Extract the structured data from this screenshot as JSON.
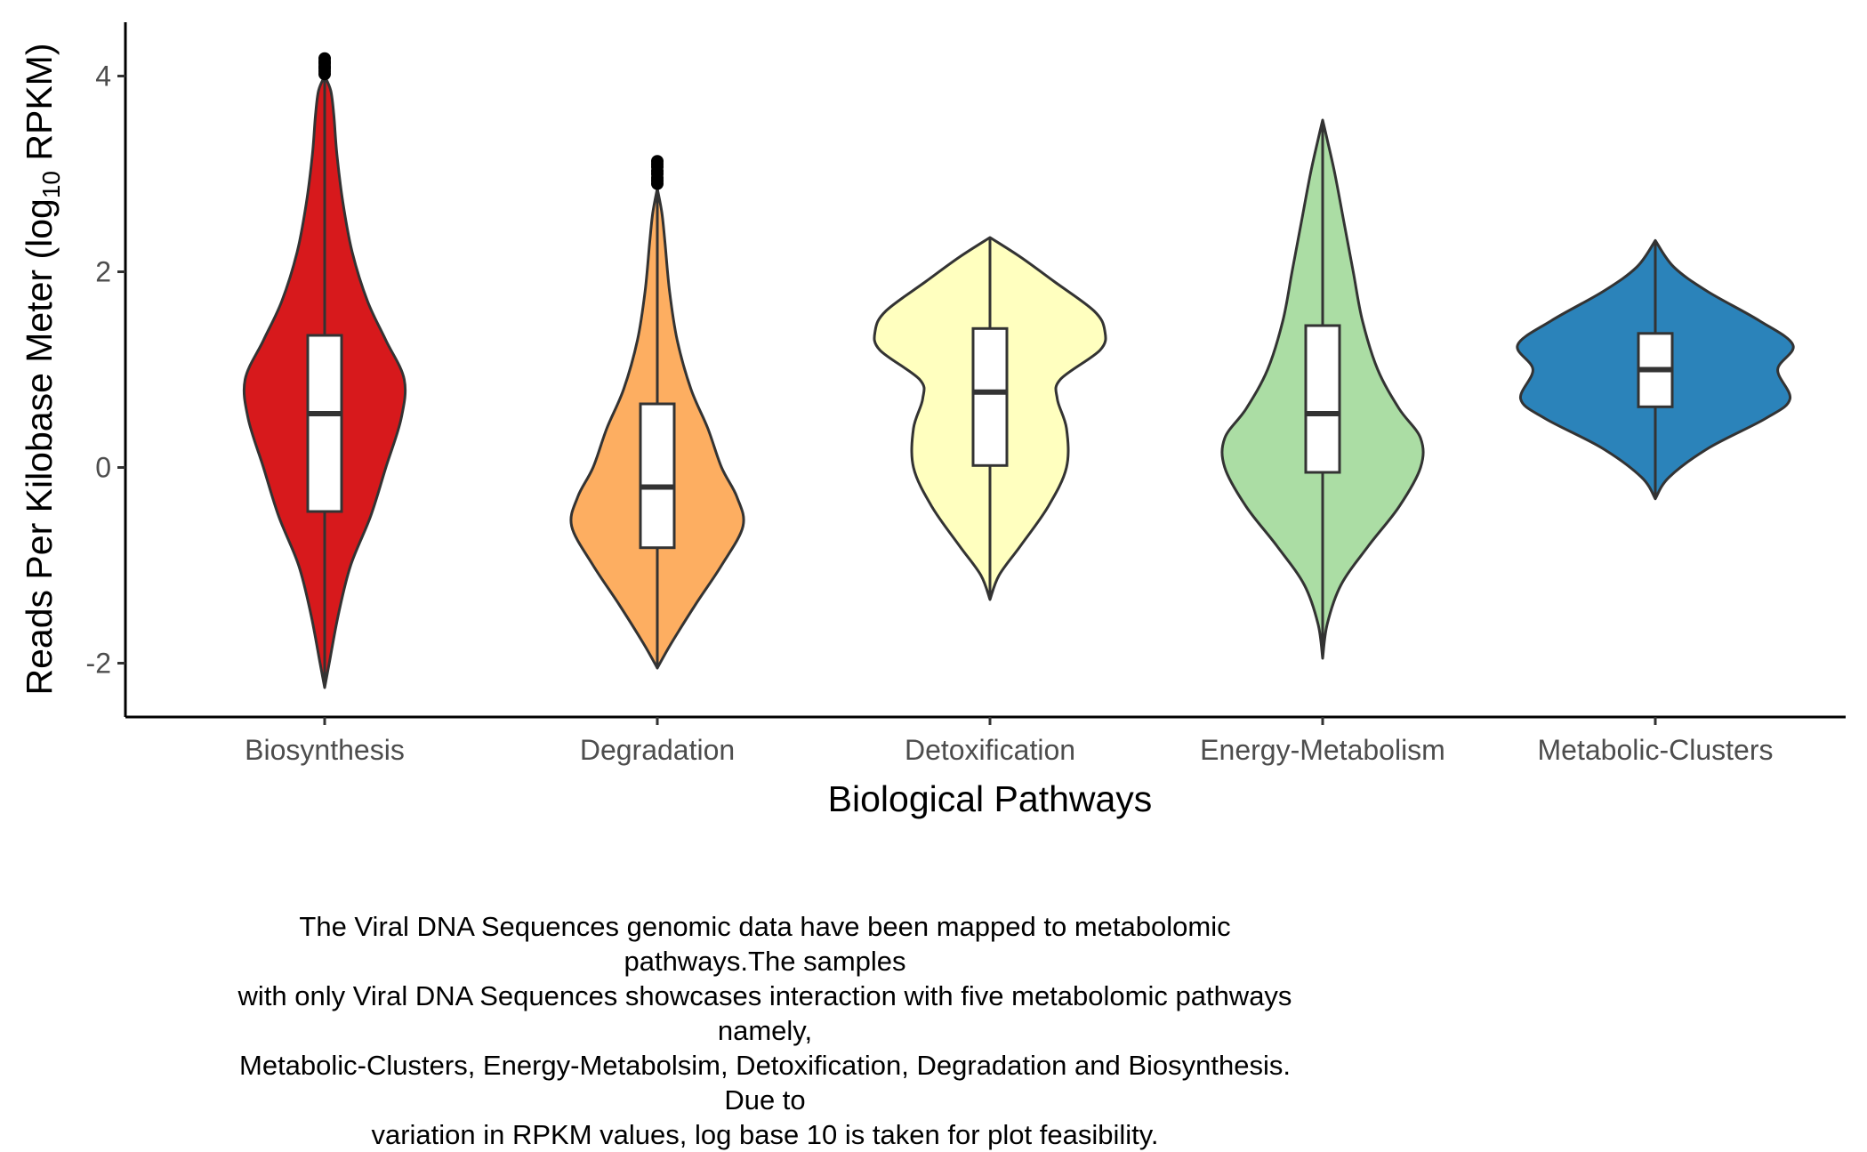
{
  "chart_data": {
    "type": "violin",
    "xlabel": "Biological Pathways",
    "ylabel": {
      "prefix": "Reads Per Kilobase Meter (log",
      "subscript": "10",
      "suffix": " RPKM)"
    },
    "ylim": [
      -2.55,
      4.55
    ],
    "yticks": [
      -2,
      0,
      2,
      4
    ],
    "ytick_labels": [
      "-2",
      "0",
      "2",
      "4"
    ],
    "grid": false,
    "legend": "none",
    "categories": [
      "Biosynthesis",
      "Degradation",
      "Detoxification",
      "Energy-Metabolism",
      "Metabolic-Clusters"
    ],
    "colors": [
      "#d7191c",
      "#fdae61",
      "#ffffbf",
      "#abdda4",
      "#2b83ba"
    ],
    "violins": [
      {
        "name": "Biosynthesis",
        "min": -2.25,
        "max": 4.0,
        "q1": -0.45,
        "median": 0.55,
        "q3": 1.35,
        "whisker_low": -2.2,
        "whisker_high": 4.0,
        "outliers": [
          4.02,
          4.05,
          4.08,
          4.1,
          4.13,
          4.15,
          4.18
        ],
        "density": [
          [
            -2.25,
            0.0
          ],
          [
            -2.0,
            0.03
          ],
          [
            -1.5,
            0.09
          ],
          [
            -1.0,
            0.17
          ],
          [
            -0.5,
            0.3
          ],
          [
            0.0,
            0.4
          ],
          [
            0.5,
            0.5
          ],
          [
            0.9,
            0.52
          ],
          [
            1.3,
            0.4
          ],
          [
            1.7,
            0.28
          ],
          [
            2.2,
            0.18
          ],
          [
            2.7,
            0.12
          ],
          [
            3.2,
            0.08
          ],
          [
            3.6,
            0.06
          ],
          [
            3.85,
            0.04
          ],
          [
            4.0,
            0.0
          ]
        ]
      },
      {
        "name": "Degradation",
        "min": -2.05,
        "max": 2.85,
        "q1": -0.82,
        "median": -0.2,
        "q3": 0.65,
        "whisker_low": -2.05,
        "whisker_high": 2.85,
        "outliers": [
          2.9,
          2.93,
          2.96,
          3.0,
          3.03,
          3.07,
          3.1,
          3.13
        ],
        "density": [
          [
            -2.05,
            0.0
          ],
          [
            -1.8,
            0.09
          ],
          [
            -1.4,
            0.25
          ],
          [
            -1.0,
            0.42
          ],
          [
            -0.6,
            0.56
          ],
          [
            -0.3,
            0.52
          ],
          [
            0.0,
            0.42
          ],
          [
            0.4,
            0.33
          ],
          [
            0.8,
            0.22
          ],
          [
            1.3,
            0.13
          ],
          [
            1.8,
            0.08
          ],
          [
            2.3,
            0.05
          ],
          [
            2.6,
            0.03
          ],
          [
            2.85,
            0.0
          ]
        ]
      },
      {
        "name": "Detoxification",
        "min": -1.35,
        "max": 2.35,
        "q1": 0.02,
        "median": 0.77,
        "q3": 1.42,
        "whisker_low": -1.35,
        "whisker_high": 2.35,
        "outliers": [],
        "density": [
          [
            -1.35,
            0.0
          ],
          [
            -1.1,
            0.06
          ],
          [
            -0.8,
            0.2
          ],
          [
            -0.4,
            0.38
          ],
          [
            0.0,
            0.5
          ],
          [
            0.4,
            0.5
          ],
          [
            0.7,
            0.44
          ],
          [
            0.9,
            0.46
          ],
          [
            1.2,
            0.72
          ],
          [
            1.4,
            0.75
          ],
          [
            1.6,
            0.68
          ],
          [
            1.9,
            0.42
          ],
          [
            2.15,
            0.2
          ],
          [
            2.35,
            0.0
          ]
        ]
      },
      {
        "name": "Energy-Metabolism",
        "min": -1.95,
        "max": 3.55,
        "q1": -0.05,
        "median": 0.55,
        "q3": 1.45,
        "whisker_low": -1.9,
        "whisker_high": 3.55,
        "outliers": [],
        "density": [
          [
            -1.95,
            0.0
          ],
          [
            -1.6,
            0.03
          ],
          [
            -1.2,
            0.12
          ],
          [
            -0.8,
            0.3
          ],
          [
            -0.4,
            0.5
          ],
          [
            0.0,
            0.64
          ],
          [
            0.3,
            0.64
          ],
          [
            0.6,
            0.5
          ],
          [
            1.0,
            0.36
          ],
          [
            1.5,
            0.26
          ],
          [
            2.0,
            0.2
          ],
          [
            2.5,
            0.14
          ],
          [
            3.0,
            0.08
          ],
          [
            3.35,
            0.03
          ],
          [
            3.55,
            0.0
          ]
        ]
      },
      {
        "name": "Metabolic-Clusters",
        "min": -0.32,
        "max": 2.32,
        "q1": 0.62,
        "median": 1.0,
        "q3": 1.37,
        "whisker_low": -0.32,
        "whisker_high": 2.32,
        "outliers": [],
        "density": [
          [
            -0.32,
            0.0
          ],
          [
            -0.1,
            0.09
          ],
          [
            0.2,
            0.35
          ],
          [
            0.5,
            0.72
          ],
          [
            0.7,
            0.88
          ],
          [
            1.0,
            0.8
          ],
          [
            1.25,
            0.9
          ],
          [
            1.5,
            0.68
          ],
          [
            1.8,
            0.34
          ],
          [
            2.05,
            0.12
          ],
          [
            2.32,
            0.0
          ]
        ]
      }
    ]
  },
  "caption": [
    "The Viral DNA Sequences genomic data have been mapped to metabolomic pathways.The samples",
    "with only Viral DNA Sequences showcases interaction with five metabolomic pathways namely,",
    "Metabolic-Clusters, Energy-Metabolsim, Detoxification, Degradation and Biosynthesis. Due to",
    "variation in RPKM values, log base 10 is taken for plot feasibility."
  ]
}
